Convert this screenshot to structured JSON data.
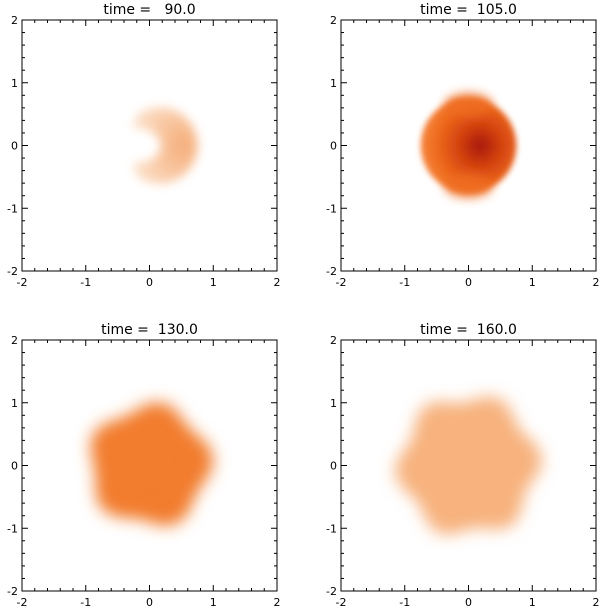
{
  "chart_data": [
    {
      "type": "heatmap",
      "title": "time =   90.0",
      "xlim": [
        -2,
        2
      ],
      "ylim": [
        -2,
        2
      ],
      "xticks": [
        "-2",
        "-1",
        "0",
        "1",
        "2"
      ],
      "yticks": [
        "-2",
        "-1",
        "0",
        "1",
        "2"
      ],
      "grid": false,
      "colormap": [
        "#ffffff",
        "#f07a2a",
        "#b81a0a"
      ],
      "feature": {
        "shape": "crescent",
        "center": [
          0.15,
          0.0
        ],
        "radius": 0.6,
        "intensity": 0.2,
        "open_side": "left"
      }
    },
    {
      "type": "heatmap",
      "title": "time =  105.0",
      "xlim": [
        -2,
        2
      ],
      "ylim": [
        -2,
        2
      ],
      "xticks": [
        "-2",
        "-1",
        "0",
        "1",
        "2"
      ],
      "yticks": [
        "-2",
        "-1",
        "0",
        "1",
        "2"
      ],
      "grid": false,
      "colormap": [
        "#ffffff",
        "#f07a2a",
        "#b81a0a"
      ],
      "feature": {
        "shape": "disk",
        "center": [
          0.0,
          0.0
        ],
        "radius": 0.75,
        "intensity": 0.9,
        "peak_side": "right"
      }
    },
    {
      "type": "heatmap",
      "title": "time =  130.0",
      "xlim": [
        -2,
        2
      ],
      "ylim": [
        -2,
        2
      ],
      "xticks": [
        "-2",
        "-1",
        "0",
        "1",
        "2"
      ],
      "yticks": [
        "-2",
        "-1",
        "0",
        "1",
        "2"
      ],
      "grid": false,
      "colormap": [
        "#ffffff",
        "#f07a2a",
        "#b81a0a"
      ],
      "feature": {
        "shape": "lobed-disk",
        "center": [
          0.0,
          0.0
        ],
        "radius": 1.0,
        "intensity": 0.55,
        "lobes": 5
      }
    },
    {
      "type": "heatmap",
      "title": "time =  160.0",
      "xlim": [
        -2,
        2
      ],
      "ylim": [
        -2,
        2
      ],
      "xticks": [
        "-2",
        "-1",
        "0",
        "1",
        "2"
      ],
      "yticks": [
        "-2",
        "-1",
        "0",
        "1",
        "2"
      ],
      "grid": false,
      "colormap": [
        "#ffffff",
        "#f07a2a",
        "#b81a0a"
      ],
      "feature": {
        "shape": "lobed-disk",
        "center": [
          0.0,
          0.0
        ],
        "radius": 1.15,
        "intensity": 0.3,
        "lobes": 6
      }
    }
  ]
}
